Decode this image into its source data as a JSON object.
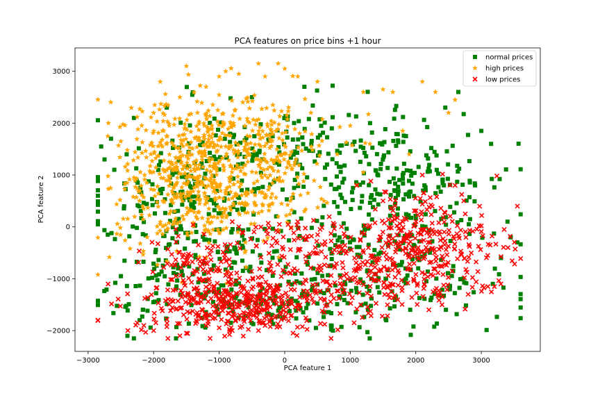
{
  "chart_data": {
    "type": "scatter",
    "title": "PCA features on price bins +1 hour",
    "xlabel": "PCA feature 1",
    "ylabel": "PCA feature 2",
    "xlim": [
      -3200,
      3900
    ],
    "ylim": [
      -2400,
      3450
    ],
    "x_ticks": [
      -3000,
      -2000,
      -1000,
      0,
      1000,
      2000,
      3000
    ],
    "x_tick_labels": [
      "−3000",
      "−2000",
      "−1000",
      "0",
      "1000",
      "2000",
      "3000"
    ],
    "y_ticks": [
      -2000,
      -1000,
      0,
      1000,
      2000,
      3000
    ],
    "y_tick_labels": [
      "−2000",
      "−1000",
      "0",
      "1000",
      "2000",
      "3000"
    ],
    "grid": false,
    "legend_position": "top-right",
    "series": [
      {
        "name": "normal prices",
        "marker": "square",
        "color": "#008000",
        "clusters": [
          {
            "cx": -1400,
            "cy": 400,
            "sx": 700,
            "sy": 850,
            "n": 260
          },
          {
            "cx": 1700,
            "cy": 900,
            "sx": 900,
            "sy": 650,
            "n": 230
          },
          {
            "cx": 1500,
            "cy": -900,
            "sx": 1000,
            "sy": 550,
            "n": 180
          },
          {
            "cx": -600,
            "cy": -1300,
            "sx": 1100,
            "sy": 350,
            "n": 170
          },
          {
            "cx": 200,
            "cy": 1500,
            "sx": 800,
            "sy": 400,
            "n": 90
          }
        ],
        "points": [
          [
            -2800,
            1550
          ],
          [
            -2750,
            1300
          ],
          [
            -2700,
            -150
          ],
          [
            -2650,
            1700
          ],
          [
            -2500,
            -950
          ],
          [
            -2400,
            -2100
          ],
          [
            3550,
            -300
          ],
          [
            3450,
            -200
          ],
          [
            3300,
            -600
          ],
          [
            3150,
            1600
          ],
          [
            2650,
            2600
          ],
          [
            1550,
            -1800
          ],
          [
            -2600,
            1100
          ],
          [
            3400,
            100
          ],
          [
            3000,
            1850
          ],
          [
            2450,
            2300
          ],
          [
            -2300,
            2100
          ],
          [
            -1800,
            2300
          ],
          [
            -500,
            2500
          ],
          [
            300,
            2700
          ]
        ]
      },
      {
        "name": "high prices",
        "marker": "star",
        "color": "#ffa500",
        "clusters": [
          {
            "cx": -1250,
            "cy": 900,
            "sx": 650,
            "sy": 650,
            "n": 560
          },
          {
            "cx": -300,
            "cy": 1400,
            "sx": 500,
            "sy": 550,
            "n": 170
          },
          {
            "cx": -1600,
            "cy": 1900,
            "sx": 500,
            "sy": 350,
            "n": 80
          }
        ],
        "points": [
          [
            -1500,
            3100
          ],
          [
            -700,
            2950
          ],
          [
            -400,
            3150
          ],
          [
            -100,
            3150
          ],
          [
            -900,
            3000
          ],
          [
            -300,
            2900
          ],
          [
            0,
            3050
          ],
          [
            200,
            2900
          ],
          [
            500,
            2800
          ],
          [
            -2700,
            1750
          ],
          [
            -2500,
            1650
          ],
          [
            -2300,
            950
          ],
          [
            2100,
            2800
          ],
          [
            2300,
            2600
          ],
          [
            2600,
            2450
          ],
          [
            1200,
            2600
          ],
          [
            1500,
            2650
          ],
          [
            1650,
            2600
          ],
          [
            1000,
            1950
          ],
          [
            1300,
            1600
          ],
          [
            1900,
            1400
          ],
          [
            1200,
            1050
          ],
          [
            1100,
            800
          ],
          [
            1800,
            1850
          ],
          [
            2500,
            2200
          ],
          [
            -1600,
            2500
          ],
          [
            -1200,
            2700
          ],
          [
            -2000,
            2200
          ],
          [
            -1000,
            2900
          ],
          [
            400,
            2200
          ],
          [
            800,
            1400
          ],
          [
            600,
            500
          ],
          [
            300,
            300
          ],
          [
            -100,
            200
          ],
          [
            -600,
            -300
          ],
          [
            -1900,
            50
          ],
          [
            -2100,
            -200
          ]
        ]
      },
      {
        "name": "low prices",
        "marker": "x",
        "color": "#ff0000",
        "clusters": [
          {
            "cx": -800,
            "cy": -1500,
            "sx": 700,
            "sy": 300,
            "n": 380
          },
          {
            "cx": 2100,
            "cy": -400,
            "sx": 600,
            "sy": 500,
            "n": 320
          },
          {
            "cx": 1100,
            "cy": -900,
            "sx": 700,
            "sy": 450,
            "n": 170
          },
          {
            "cx": -1400,
            "cy": -600,
            "sx": 400,
            "sy": 300,
            "n": 80
          },
          {
            "cx": 100,
            "cy": -300,
            "sx": 350,
            "sy": 300,
            "n": 60
          }
        ],
        "points": [
          [
            3550,
            400
          ],
          [
            3200,
            -1150
          ],
          [
            3300,
            -1100
          ],
          [
            3100,
            -1150
          ],
          [
            2800,
            -1300
          ],
          [
            2400,
            -1500
          ],
          [
            2200,
            -1600
          ],
          [
            -2250,
            -1850
          ],
          [
            -2150,
            -1900
          ],
          [
            -2000,
            -2000
          ],
          [
            -1500,
            -2050
          ],
          [
            -1600,
            -2100
          ],
          [
            -1200,
            -1900
          ],
          [
            -800,
            -2000
          ],
          [
            -400,
            -2000
          ],
          [
            -300,
            -1900
          ],
          [
            1100,
            800
          ],
          [
            1500,
            500
          ],
          [
            2100,
            1000
          ],
          [
            2600,
            800
          ],
          [
            1800,
            100
          ],
          [
            200,
            100
          ],
          [
            -800,
            100
          ],
          [
            -700,
            0
          ]
        ]
      }
    ]
  }
}
